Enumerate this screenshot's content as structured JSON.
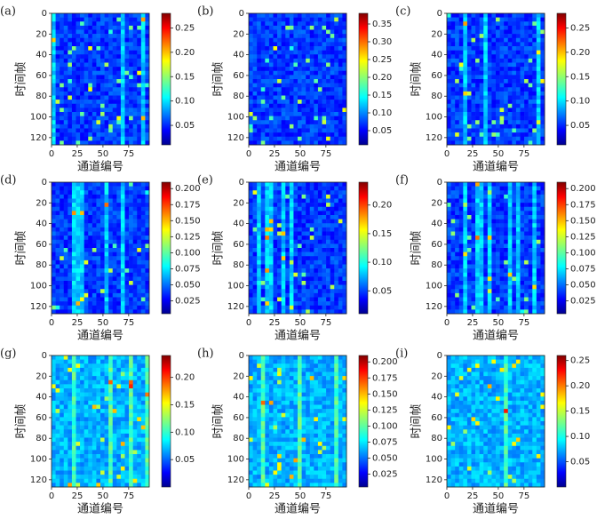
{
  "chart_data": [
    {
      "type": "heatmap",
      "panel": "(a)",
      "x_label": "通道编号",
      "y_label": "时间帧",
      "xlim": [
        0,
        95
      ],
      "xticks": [
        0,
        25,
        50,
        75
      ],
      "ylim": [
        0,
        127
      ],
      "yticks": [
        0,
        20,
        40,
        60,
        80,
        100,
        120
      ],
      "clim": [
        0.01,
        0.28
      ],
      "cticks": [
        0.05,
        {
          "value": 0.1,
          "label": "0.10"
        },
        0.15,
        {
          "value": 0.2,
          "label": "0.20"
        },
        0.25
      ]
    },
    {
      "type": "heatmap",
      "panel": "(b)",
      "x_label": "通道编号",
      "y_label": "时间帧",
      "xlim": [
        0,
        95
      ],
      "xticks": [
        0,
        25,
        50,
        75
      ],
      "ylim": [
        0,
        127
      ],
      "yticks": [
        0,
        20,
        40,
        60,
        80,
        100,
        120
      ],
      "clim": [
        0.01,
        0.38
      ],
      "cticks": [
        0.05,
        {
          "value": 0.1,
          "label": "0.10"
        },
        0.15,
        {
          "value": 0.2,
          "label": "0.20"
        },
        0.25,
        {
          "value": 0.3,
          "label": "0.30"
        },
        0.35
      ]
    },
    {
      "type": "heatmap",
      "panel": "(c)",
      "x_label": "通道编号",
      "y_label": "时间帧",
      "xlim": [
        0,
        95
      ],
      "xticks": [
        0,
        25,
        50,
        75
      ],
      "ylim": [
        0,
        127
      ],
      "yticks": [
        0,
        20,
        40,
        60,
        80,
        100,
        120
      ],
      "clim": [
        0.01,
        0.28
      ],
      "cticks": [
        0.05,
        {
          "value": 0.1,
          "label": "0.10"
        },
        0.15,
        {
          "value": 0.2,
          "label": "0.20"
        },
        0.25
      ]
    },
    {
      "type": "heatmap",
      "panel": "(d)",
      "x_label": "通道编号",
      "y_label": "时间帧",
      "xlim": [
        0,
        95
      ],
      "xticks": [
        0,
        25,
        50,
        75
      ],
      "ylim": [
        0,
        127
      ],
      "yticks": [
        0,
        20,
        40,
        60,
        80,
        100,
        120
      ],
      "clim": [
        0.005,
        0.21
      ],
      "cticks": [
        0.025,
        {
          "value": 0.05,
          "label": "0.050"
        },
        0.075,
        {
          "value": 0.1,
          "label": "0.100"
        },
        0.125,
        {
          "value": 0.15,
          "label": "0.150"
        },
        0.175,
        {
          "value": 0.2,
          "label": "0.200"
        }
      ]
    },
    {
      "type": "heatmap",
      "panel": "(e)",
      "x_label": "通道编号",
      "y_label": "时间帧",
      "xlim": [
        0,
        95
      ],
      "xticks": [
        0,
        25,
        50,
        75
      ],
      "ylim": [
        0,
        127
      ],
      "yticks": [
        0,
        20,
        40,
        60,
        80,
        100,
        120
      ],
      "clim": [
        0.01,
        0.24
      ],
      "cticks": [
        0.05,
        {
          "value": 0.1,
          "label": "0.10"
        },
        0.15,
        {
          "value": 0.2,
          "label": "0.20"
        }
      ]
    },
    {
      "type": "heatmap",
      "panel": "(f)",
      "x_label": "通道编号",
      "y_label": "时间帧",
      "xlim": [
        0,
        95
      ],
      "xticks": [
        0,
        25,
        50,
        75
      ],
      "ylim": [
        0,
        127
      ],
      "yticks": [
        0,
        20,
        40,
        60,
        80,
        100,
        120
      ],
      "clim": [
        0.005,
        0.21
      ],
      "cticks": [
        0.025,
        {
          "value": 0.05,
          "label": "0.050"
        },
        0.075,
        {
          "value": 0.1,
          "label": "0.100"
        },
        0.125,
        {
          "value": 0.15,
          "label": "0.150"
        },
        0.175,
        {
          "value": 0.2,
          "label": "0.200"
        }
      ]
    },
    {
      "type": "heatmap",
      "panel": "(g)",
      "x_label": "通道编号",
      "y_label": "时间帧",
      "xlim": [
        0,
        95
      ],
      "xticks": [
        0,
        25,
        50,
        75
      ],
      "ylim": [
        0,
        127
      ],
      "yticks": [
        0,
        20,
        40,
        60,
        80,
        100,
        120
      ],
      "clim": [
        0.0,
        0.24
      ],
      "cticks": [
        0.05,
        {
          "value": 0.1,
          "label": "0.10"
        },
        0.15,
        {
          "value": 0.2,
          "label": "0.20"
        }
      ]
    },
    {
      "type": "heatmap",
      "panel": "(h)",
      "x_label": "通道编号",
      "y_label": "时间帧",
      "xlim": [
        0,
        95
      ],
      "xticks": [
        0,
        25,
        50,
        75
      ],
      "ylim": [
        0,
        127
      ],
      "yticks": [
        0,
        20,
        40,
        60,
        80,
        100,
        120
      ],
      "clim": [
        0.005,
        0.21
      ],
      "cticks": [
        0.025,
        {
          "value": 0.05,
          "label": "0.050"
        },
        0.075,
        {
          "value": 0.1,
          "label": "0.100"
        },
        0.125,
        {
          "value": 0.15,
          "label": "0.150"
        },
        0.175,
        {
          "value": 0.2,
          "label": "0.200"
        }
      ]
    },
    {
      "type": "heatmap",
      "panel": "(i)",
      "x_label": "通道编号",
      "y_label": "时间帧",
      "xlim": [
        0,
        95
      ],
      "xticks": [
        0,
        25,
        50,
        75
      ],
      "ylim": [
        0,
        127
      ],
      "yticks": [
        0,
        20,
        40,
        60,
        80,
        100,
        120
      ],
      "clim": [
        0.0,
        0.26
      ],
      "cticks": [
        0.05,
        {
          "value": 0.1,
          "label": "0.10"
        },
        0.15,
        {
          "value": 0.2,
          "label": "0.20"
        },
        0.25
      ]
    }
  ]
}
